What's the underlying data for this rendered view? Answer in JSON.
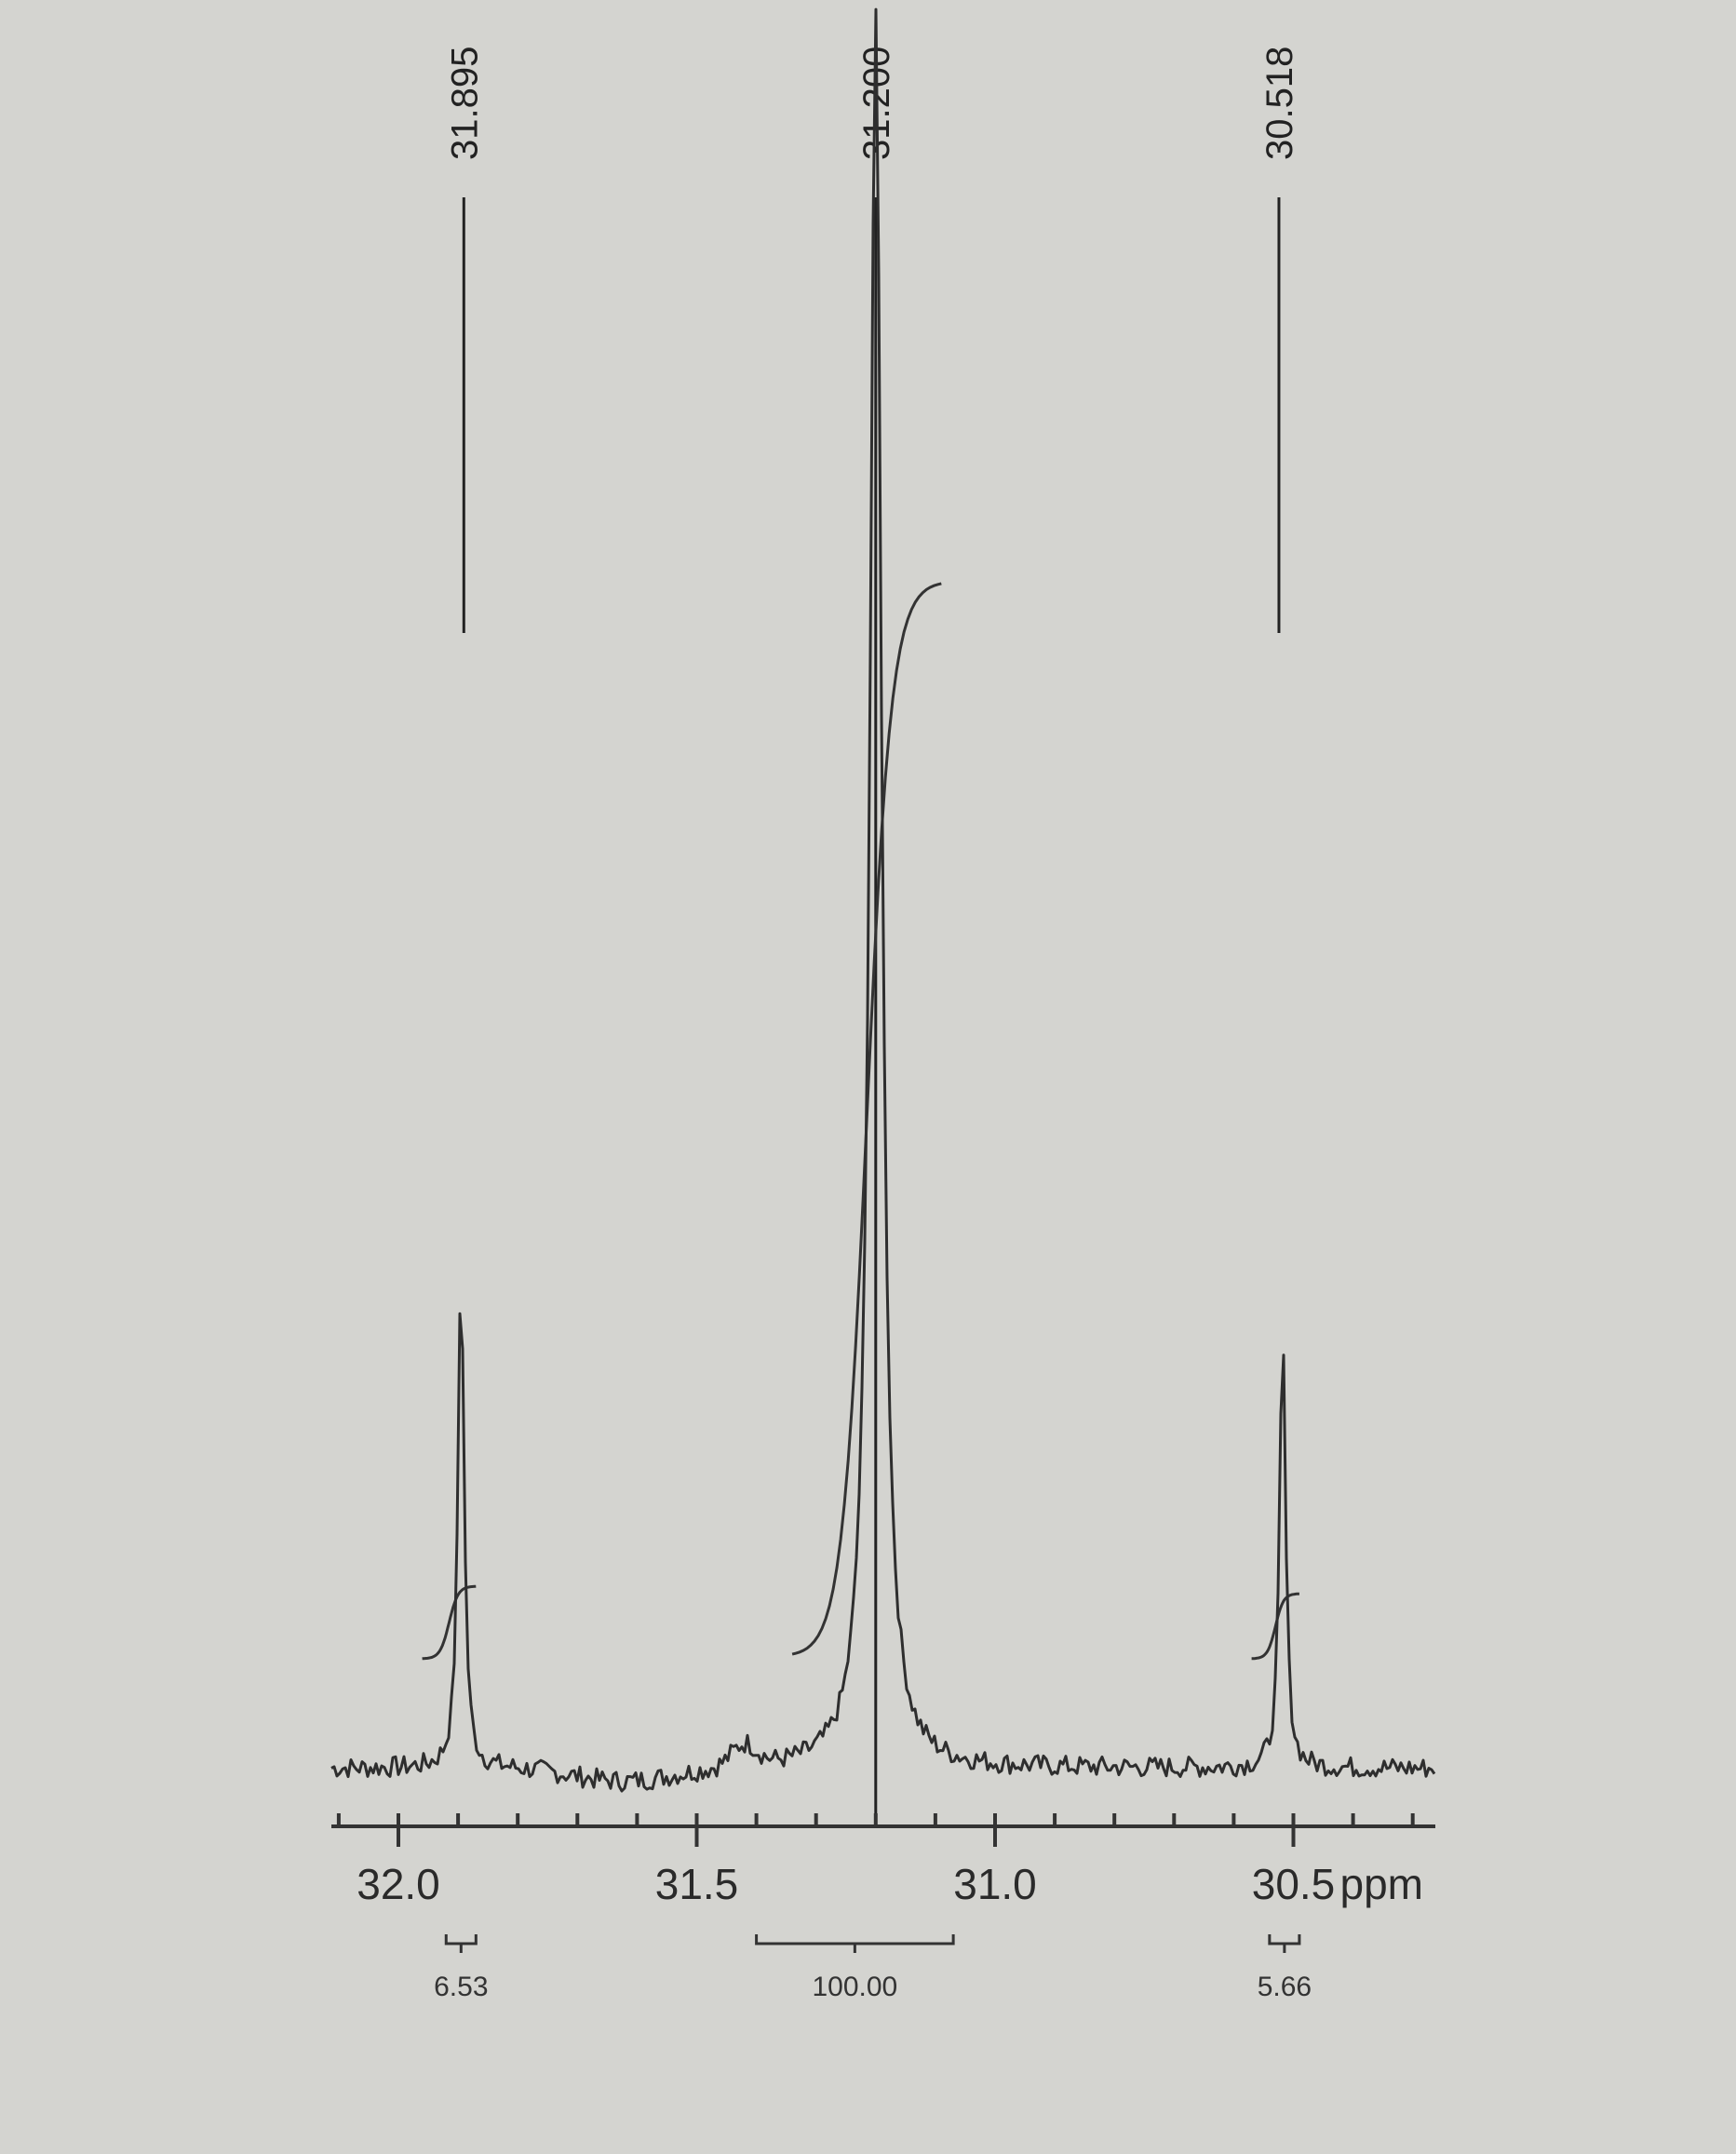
{
  "chart_data": {
    "type": "line",
    "title": "",
    "xlabel": "",
    "x_unit": "ppm",
    "xlim": [
      32.05,
      30.3
    ],
    "x_reversed": true,
    "ticks": [
      {
        "value": 32.0,
        "label": "32.0"
      },
      {
        "value": 31.5,
        "label": "31.5"
      },
      {
        "value": 31.0,
        "label": "31.0"
      },
      {
        "value": 30.5,
        "label": "30.5"
      }
    ],
    "minor_tick_step": 0.1,
    "peaks": [
      {
        "shift": 31.895,
        "label": "31.895",
        "relative_height": 0.29
      },
      {
        "shift": 31.2,
        "label": "31.200",
        "relative_height": 1.0
      },
      {
        "shift": 30.518,
        "label": "30.518",
        "relative_height": 0.25
      }
    ],
    "integrals": [
      {
        "from": 31.92,
        "to": 31.87,
        "value": "6.53"
      },
      {
        "from": 31.4,
        "to": 31.07,
        "value": "100.00"
      },
      {
        "from": 30.54,
        "to": 30.49,
        "value": "5.66"
      }
    ]
  }
}
